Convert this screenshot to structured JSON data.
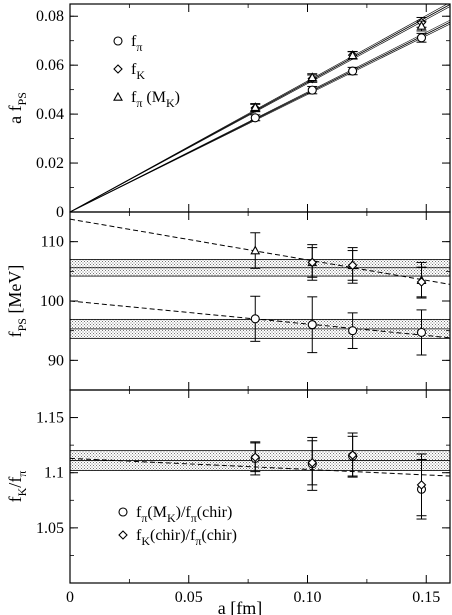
{
  "chart_data": [
    {
      "type": "line",
      "panel": "top",
      "ylabel": {
        "main": "a f",
        "sub": "PS"
      },
      "xlim": [
        0,
        0.16
      ],
      "ylim": [
        0,
        0.085
      ],
      "yticks": [
        0,
        0.02,
        0.04,
        0.06,
        0.08
      ],
      "ytick_labels": [
        "0",
        "0.02",
        "0.04",
        "0.06",
        "0.08"
      ],
      "grid": false,
      "legend_position": "top-left",
      "legend": [
        {
          "marker": "circle",
          "main": "f",
          "sub": "π",
          "tail": ""
        },
        {
          "marker": "diamond",
          "main": "f",
          "sub": "K",
          "tail": ""
        },
        {
          "marker": "triangle",
          "main": "f",
          "sub": "π",
          "tail": " (M",
          "sub2": "K",
          "tail2": ")"
        }
      ],
      "series": [
        {
          "marker": "circle",
          "x": [
            0.078,
            0.102,
            0.119,
            0.148
          ],
          "y": [
            0.0385,
            0.0498,
            0.0576,
            0.0712
          ],
          "err": [
            0.0012,
            0.0015,
            0.0015,
            0.0018
          ]
        },
        {
          "marker": "diamond",
          "x": [
            0.078,
            0.102,
            0.119,
            0.148
          ],
          "y": [
            0.0425,
            0.0545,
            0.0641,
            0.0775
          ],
          "err": [
            0.0015,
            0.0015,
            0.0015,
            0.002
          ]
        },
        {
          "marker": "triangle",
          "x": [
            0.078,
            0.102,
            0.119,
            0.148
          ],
          "y": [
            0.0428,
            0.055,
            0.064,
            0.076
          ],
          "err": [
            0.0015,
            0.0015,
            0.0015,
            0.002
          ]
        }
      ],
      "fit_bands": [
        {
          "slope": 0.485,
          "width": 0.0008
        },
        {
          "slope": 0.53,
          "width": 0.0008
        }
      ]
    },
    {
      "type": "scatter",
      "panel": "middle",
      "ylabel": {
        "main": "f",
        "sub": "PS",
        "tail": " [MeV]"
      },
      "xlim": [
        0,
        0.16
      ],
      "ylim": [
        85,
        115
      ],
      "yticks": [
        90,
        100,
        110
      ],
      "ytick_labels": [
        "90",
        "100",
        "110"
      ],
      "grid": false,
      "series": [
        {
          "marker": "circle",
          "x": [
            0.078,
            0.102,
            0.119,
            0.148
          ],
          "y": [
            97.0,
            96.0,
            95.0,
            94.7
          ],
          "err": [
            3.8,
            4.7,
            3.0,
            3.8
          ]
        },
        {
          "marker": "triangle",
          "x": [
            0.078,
            0.102,
            0.119,
            0.148
          ],
          "y": [
            108.5,
            106.5,
            106.0,
            103.5
          ],
          "err": [
            3.0,
            3.0,
            3.0,
            3.0
          ]
        },
        {
          "marker": "diamond",
          "x": [
            0.102,
            0.119,
            0.148
          ],
          "y": [
            106.5,
            106.0,
            103.2
          ],
          "err": [
            2.5,
            2.5,
            2.5
          ]
        }
      ],
      "bands": [
        {
          "center": 95.3,
          "half_width": 1.6
        },
        {
          "center": 105.6,
          "half_width": 1.4
        }
      ],
      "dashed_lines": [
        {
          "x": [
            0,
            0.16
          ],
          "y": [
            100.0,
            93.8
          ]
        },
        {
          "x": [
            0,
            0.16
          ],
          "y": [
            113.8,
            102.8
          ]
        }
      ]
    },
    {
      "type": "scatter",
      "panel": "bottom",
      "ylabel": {
        "main": "f",
        "sub": "K",
        "tail": "/f",
        "sub2": "π"
      },
      "xlabel": "a [fm]",
      "xlim": [
        0,
        0.16
      ],
      "ylim": [
        1.0,
        1.175
      ],
      "yticks": [
        1.05,
        1.1,
        1.15
      ],
      "ytick_labels": [
        "1.05",
        "1.1",
        "1.15"
      ],
      "xticks": [
        0,
        0.05,
        0.1,
        0.15
      ],
      "xtick_labels": [
        "0",
        "0.05",
        "0.10",
        "0.15"
      ],
      "grid": false,
      "legend_position": "bottom-right",
      "legend": [
        {
          "marker": "circle",
          "main": "f",
          "sub": "π",
          "tail": "(M",
          "sub2": "K",
          "tail2": ")/f",
          "sub3": "π",
          "tail3": "(chir)"
        },
        {
          "marker": "diamond",
          "main": "f",
          "sub": "K",
          "tail": "(chir)/f",
          "sub2": "π",
          "tail2": "(chir)"
        }
      ],
      "series": [
        {
          "marker": "circle",
          "x": [
            0.078,
            0.102,
            0.119,
            0.148
          ],
          "y": [
            1.113,
            1.108,
            1.115,
            1.085
          ],
          "err": [
            0.015,
            0.024,
            0.018,
            0.027
          ]
        },
        {
          "marker": "diamond",
          "x": [
            0.078,
            0.102,
            0.119,
            0.148
          ],
          "y": [
            1.114,
            1.109,
            1.116,
            1.089
          ],
          "err": [
            0.013,
            0.02,
            0.02,
            0.028
          ]
        }
      ],
      "bands": [
        {
          "center": 1.111,
          "half_width": 0.009
        }
      ],
      "dashed_lines": [
        {
          "x": [
            0,
            0.16
          ],
          "y": [
            1.113,
            1.097
          ]
        }
      ]
    }
  ]
}
